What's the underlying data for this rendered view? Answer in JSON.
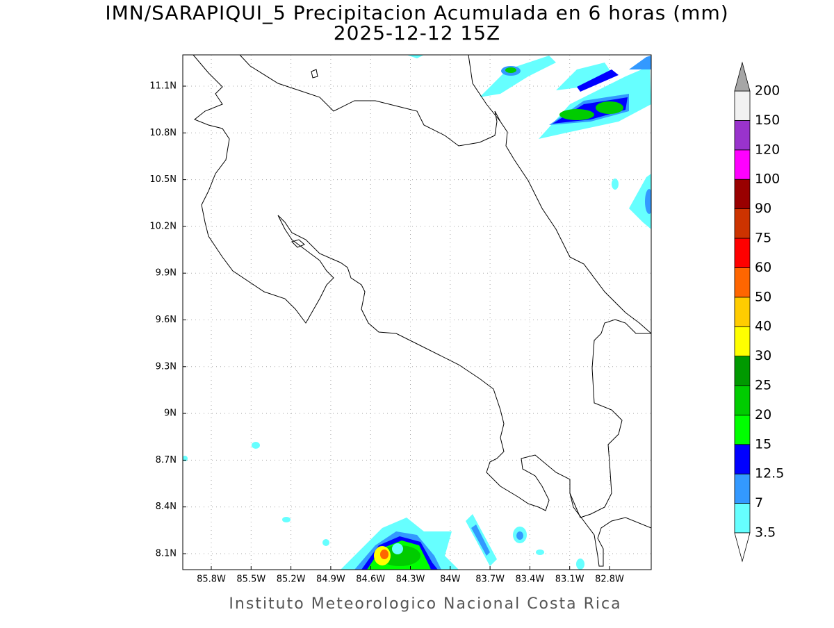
{
  "title": "IMN/SARAPIQUI_5 Precipitacion Acumulada en 6 horas (mm)",
  "subtitle": "2025-12-12 15Z",
  "map": {
    "lon_ticks": [
      "85.8W",
      "85.5W",
      "85.2W",
      "84.9W",
      "84.6W",
      "84.3W",
      "84W",
      "83.7W",
      "83.4W",
      "83.1W",
      "82.8W"
    ],
    "lat_ticks": [
      "11.1N",
      "10.8N",
      "10.5N",
      "10.2N",
      "9.9N",
      "9.6N",
      "9.3N",
      "9N",
      "8.7N",
      "8.4N",
      "8.1N"
    ],
    "grid": true
  },
  "colorbar": {
    "levels": [
      3.5,
      7,
      12.5,
      15,
      20,
      25,
      30,
      40,
      50,
      60,
      75,
      90,
      100,
      120,
      150,
      200
    ],
    "colors": [
      "#66ffff",
      "#3399ff",
      "#0000ff",
      "#00ff00",
      "#00cc00",
      "#009900",
      "#ffff00",
      "#ffcc00",
      "#ff6600",
      "#ff0000",
      "#cc3300",
      "#990000",
      "#ff00ff",
      "#9933cc",
      "#f2f2f2"
    ],
    "over_color": "#a6a6a6",
    "under_color": "#ffffff"
  },
  "footer": "Instituto Meteorologico Nacional Costa Rica"
}
